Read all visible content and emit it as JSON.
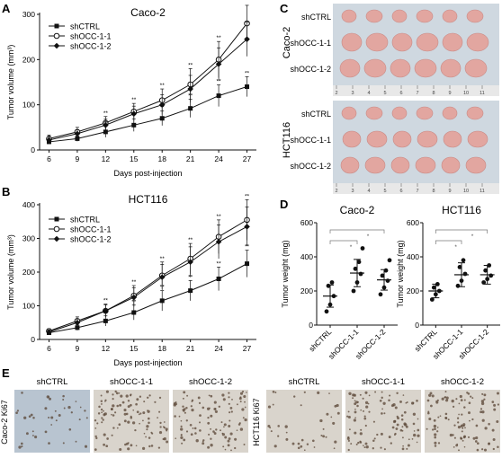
{
  "panels": {
    "A": {
      "letter": "A"
    },
    "B": {
      "letter": "B"
    },
    "C": {
      "letter": "C",
      "cell_lines": [
        "Caco-2",
        "HCT116"
      ],
      "rows": [
        "shCTRL",
        "shOCC-1-1",
        "shOCC-1-2"
      ],
      "ruler_numbers": [
        "2",
        "3",
        "4",
        "5",
        "6",
        "7",
        "8",
        "9",
        "10",
        "11"
      ]
    },
    "D": {
      "letter": "D"
    },
    "E": {
      "letter": "E",
      "groups": [
        {
          "row_label": "Caco-2  Ki67",
          "columns": [
            "shCTRL",
            "shOCC-1-1",
            "shOCC-1-2"
          ]
        },
        {
          "row_label": "HCT116  Ki67",
          "columns": [
            "shCTRL",
            "shOCC-1-1",
            "shOCC-1-2"
          ]
        }
      ]
    }
  },
  "colors": {
    "ink": "#111111",
    "tumor_tile_bg": "#cfd8e0",
    "tumor_pink": "#e2a6a0",
    "ruler": "#e8e8e8",
    "ihc_light": "#d9d4cc",
    "ihc_dark": "#5a4535",
    "ihc_blue": "#b8c4d0"
  },
  "significance_marker": "*",
  "chart_data": [
    {
      "id": "A",
      "type": "line",
      "title": "Caco-2",
      "xlabel": "Days post-injection",
      "ylabel": "Tumor volume (mm³)",
      "x": [
        6,
        9,
        12,
        15,
        18,
        21,
        24,
        27
      ],
      "xlim": [
        5,
        28
      ],
      "ylim": [
        0,
        300
      ],
      "yticks": [
        0,
        100,
        200,
        300
      ],
      "legend": "top-left",
      "series": [
        {
          "name": "shCTRL",
          "marker": "square",
          "values": [
            18,
            25,
            40,
            55,
            70,
            92,
            120,
            140
          ],
          "err": [
            5,
            6,
            12,
            14,
            16,
            20,
            24,
            22
          ]
        },
        {
          "name": "shOCC-1-1",
          "marker": "circle-open",
          "values": [
            25,
            40,
            60,
            85,
            110,
            145,
            200,
            280
          ],
          "err": [
            8,
            10,
            14,
            18,
            25,
            35,
            40,
            40
          ]
        },
        {
          "name": "shOCC-1-2",
          "marker": "diamond",
          "values": [
            22,
            36,
            55,
            80,
            100,
            135,
            190,
            245
          ],
          "err": [
            7,
            9,
            13,
            17,
            22,
            30,
            36,
            38
          ]
        }
      ]
    },
    {
      "id": "B",
      "type": "line",
      "title": "HCT116",
      "xlabel": "Days post-injection",
      "ylabel": "Tumor volume (mm³)",
      "x": [
        6,
        9,
        12,
        15,
        18,
        21,
        24,
        27
      ],
      "xlim": [
        5,
        28
      ],
      "ylim": [
        0,
        400
      ],
      "yticks": [
        0,
        100,
        200,
        300,
        400
      ],
      "legend": "top-left",
      "series": [
        {
          "name": "shCTRL",
          "marker": "square",
          "values": [
            20,
            35,
            55,
            80,
            115,
            145,
            180,
            225
          ],
          "err": [
            5,
            8,
            15,
            22,
            30,
            30,
            35,
            40
          ]
        },
        {
          "name": "shOCC-1-1",
          "marker": "circle-open",
          "values": [
            25,
            55,
            85,
            130,
            190,
            240,
            305,
            355
          ],
          "err": [
            7,
            12,
            20,
            30,
            40,
            45,
            50,
            60
          ]
        },
        {
          "name": "shOCC-1-2",
          "marker": "diamond",
          "values": [
            22,
            50,
            85,
            125,
            185,
            230,
            290,
            335
          ],
          "err": [
            6,
            11,
            18,
            28,
            38,
            45,
            50,
            58
          ]
        }
      ]
    },
    {
      "id": "D1",
      "type": "scatter",
      "title": "Caco-2",
      "xlabel": "",
      "ylabel": "Tumor weight (mg)",
      "categories": [
        "shCTRL",
        "shOCC-1-1",
        "shOCC-1-2"
      ],
      "ylim": [
        0,
        600
      ],
      "yticks": [
        0,
        200,
        400,
        600
      ],
      "points": [
        [
          80,
          120,
          170,
          230,
          250
        ],
        [
          200,
          250,
          300,
          330,
          370,
          450
        ],
        [
          180,
          220,
          260,
          290,
          320,
          380
        ]
      ],
      "mean": [
        170,
        305,
        265
      ],
      "sd": [
        65,
        80,
        60
      ],
      "brackets": [
        [
          0,
          1,
          "*"
        ],
        [
          0,
          2,
          "*"
        ]
      ]
    },
    {
      "id": "D2",
      "type": "scatter",
      "title": "HCT116",
      "xlabel": "",
      "ylabel": "Tumor weight (mg)",
      "categories": [
        "shCTRL",
        "shOCC-1-1",
        "shOCC-1-2"
      ],
      "ylim": [
        0,
        600
      ],
      "yticks": [
        0,
        200,
        400,
        600
      ],
      "points": [
        [
          150,
          180,
          200,
          220,
          240
        ],
        [
          230,
          260,
          300,
          340,
          380
        ],
        [
          250,
          270,
          290,
          320,
          350
        ]
      ],
      "mean": [
        200,
        295,
        295
      ],
      "sd": [
        40,
        70,
        55
      ],
      "brackets": [
        [
          0,
          1,
          "*"
        ],
        [
          0,
          2,
          "*"
        ]
      ]
    }
  ]
}
